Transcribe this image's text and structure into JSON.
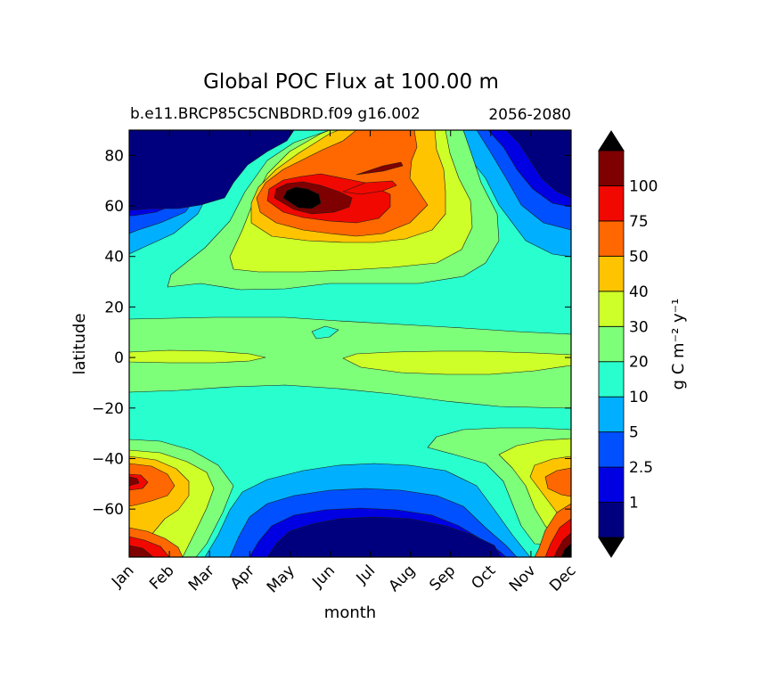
{
  "chart_data": {
    "type": "heatmap",
    "title": "Global POC Flux at 100.00 m",
    "subtitle_left": "b.e11.BRCP85C5CNBDRD.f09 g16.002",
    "subtitle_right": "2056-2080",
    "xlabel": "month",
    "ylabel": "latitude",
    "x_ticks": [
      "Jan",
      "Feb",
      "Mar",
      "Apr",
      "May",
      "Jun",
      "Jul",
      "Aug",
      "Sep",
      "Oct",
      "Nov",
      "Dec"
    ],
    "y_ticks": [
      80,
      60,
      40,
      20,
      0,
      -20,
      -40,
      -60
    ],
    "ylim": [
      -79,
      90
    ],
    "colorbar": {
      "label": "g C m⁻² y⁻¹",
      "levels": [
        "1",
        "2.5",
        "5",
        "10",
        "20",
        "30",
        "40",
        "50",
        "75",
        "100"
      ],
      "colors": [
        "#00007f",
        "#0000e3",
        "#0050ff",
        "#00b0ff",
        "#29ffce",
        "#7dff7a",
        "#ceff29",
        "#ffc400",
        "#ff6800",
        "#f10800",
        "#7f0000"
      ],
      "under_color": "#000000",
      "over_color": "#000000"
    },
    "regions": [
      {
        "level": 4,
        "desc": "background 10-20 band covering mid latitudes"
      },
      {
        "level": 5,
        "desc": "tropical 20-30 band near equator"
      },
      {
        "level": 6,
        "desc": "equatorial 30-40 bands"
      },
      {
        "level": 10,
        "desc": "North Atlantic spring bloom peak in May-Jun near 60N"
      },
      {
        "level": 0,
        "desc": "Southern Ocean austral winter minimum May-Oct"
      }
    ]
  }
}
